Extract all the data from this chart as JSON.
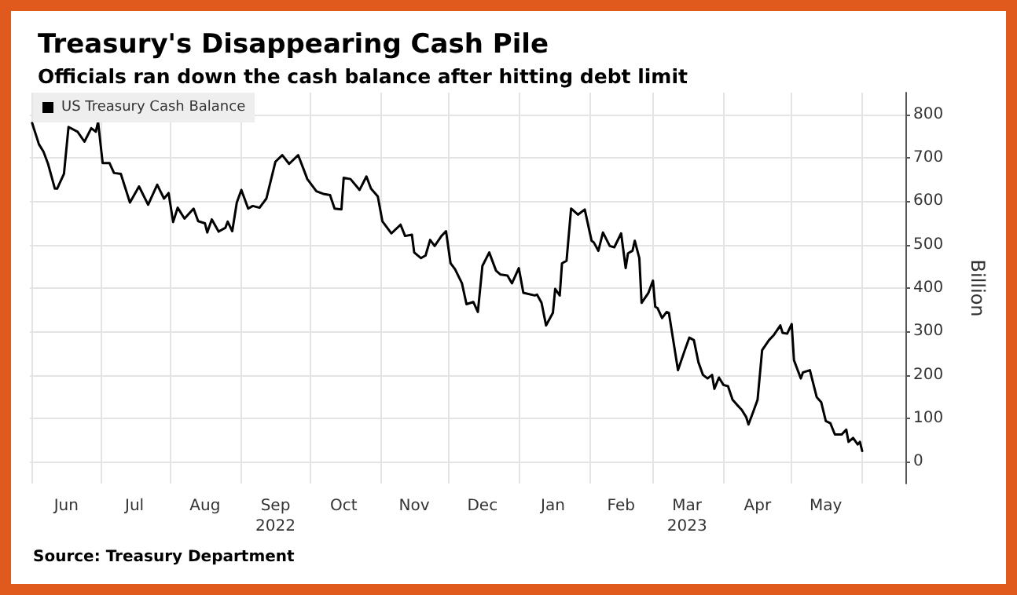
{
  "chart_data": {
    "type": "line",
    "title": "Treasury's Disappearing Cash Pile",
    "subtitle": "Officials ran down the cash balance after hitting debt limit",
    "ylabel": "Billion",
    "annotations": [
      "Source: Treasury Department"
    ],
    "legend": "top left",
    "grid": true,
    "marker": "none",
    "line_style": "solid",
    "xlim": [
      "2022-05-31",
      "2023-06-20"
    ],
    "xticks": [
      {
        "value": "2022-06-01",
        "label": null
      },
      {
        "value": "2022-06-16",
        "label": "Jun"
      },
      {
        "value": "2022-07-01",
        "label": null
      },
      {
        "value": "2022-07-16",
        "label": "Jul"
      },
      {
        "value": "2022-08-01",
        "label": null
      },
      {
        "value": "2022-08-16",
        "label": "Aug"
      },
      {
        "value": "2022-09-01",
        "label": null
      },
      {
        "value": "2022-09-16",
        "label": "Sep\n2022"
      },
      {
        "value": "2022-10-01",
        "label": null
      },
      {
        "value": "2022-10-16",
        "label": "Oct"
      },
      {
        "value": "2022-11-01",
        "label": null
      },
      {
        "value": "2022-11-16",
        "label": "Nov"
      },
      {
        "value": "2022-12-01",
        "label": null
      },
      {
        "value": "2022-12-16",
        "label": "Dec"
      },
      {
        "value": "2023-01-01",
        "label": null
      },
      {
        "value": "2023-01-16",
        "label": "Jan"
      },
      {
        "value": "2023-02-01",
        "label": null
      },
      {
        "value": "2023-02-15",
        "label": "Feb"
      },
      {
        "value": "2023-03-01",
        "label": null
      },
      {
        "value": "2023-03-16",
        "label": "Mar\n2023"
      },
      {
        "value": "2023-04-01",
        "label": null
      },
      {
        "value": "2023-04-16",
        "label": "Apr"
      },
      {
        "value": "2023-05-01",
        "label": null
      },
      {
        "value": "2023-05-16",
        "label": "May"
      },
      {
        "value": "2023-06-01",
        "label": null
      }
    ],
    "ylim": [
      -50,
      850
    ],
    "yticks": [
      0,
      100,
      200,
      300,
      400,
      500,
      600,
      700,
      800
    ],
    "x": [
      "2022-06-01",
      "2022-06-04",
      "2022-06-06",
      "2022-06-08",
      "2022-06-11",
      "2022-06-12",
      "2022-06-15",
      "2022-06-17",
      "2022-06-21",
      "2022-06-24",
      "2022-06-27",
      "2022-06-29",
      "2022-06-30",
      "2022-07-02",
      "2022-07-05",
      "2022-07-07",
      "2022-07-10",
      "2022-07-14",
      "2022-07-18",
      "2022-07-22",
      "2022-07-26",
      "2022-07-29",
      "2022-07-31",
      "2022-08-02",
      "2022-08-04",
      "2022-08-07",
      "2022-08-11",
      "2022-08-13",
      "2022-08-16",
      "2022-08-17",
      "2022-08-19",
      "2022-08-22",
      "2022-08-25",
      "2022-08-26",
      "2022-08-28",
      "2022-08-30",
      "2022-09-01",
      "2022-09-04",
      "2022-09-06",
      "2022-09-09",
      "2022-09-12",
      "2022-09-16",
      "2022-09-19",
      "2022-09-22",
      "2022-09-26",
      "2022-09-29",
      "2022-09-30",
      "2022-10-04",
      "2022-10-07",
      "2022-10-10",
      "2022-10-12",
      "2022-10-15",
      "2022-10-16",
      "2022-10-19",
      "2022-10-23",
      "2022-10-26",
      "2022-10-28",
      "2022-10-31",
      "2022-11-02",
      "2022-11-06",
      "2022-11-10",
      "2022-11-12",
      "2022-11-15",
      "2022-11-16",
      "2022-11-19",
      "2022-11-21",
      "2022-11-23",
      "2022-11-25",
      "2022-11-28",
      "2022-11-30",
      "2022-12-02",
      "2022-12-04",
      "2022-12-07",
      "2022-12-09",
      "2022-12-12",
      "2022-12-14",
      "2022-12-16",
      "2022-12-19",
      "2022-12-22",
      "2022-12-24",
      "2022-12-27",
      "2022-12-29",
      "2023-01-01",
      "2023-01-03",
      "2023-01-08",
      "2023-01-09",
      "2023-01-11",
      "2023-01-13",
      "2023-01-16",
      "2023-01-17",
      "2023-01-19",
      "2023-01-20",
      "2023-01-22",
      "2023-01-24",
      "2023-01-27",
      "2023-01-30",
      "2023-02-02",
      "2023-02-03",
      "2023-02-05",
      "2023-02-07",
      "2023-02-10",
      "2023-02-12",
      "2023-02-15",
      "2023-02-17",
      "2023-02-18",
      "2023-02-20",
      "2023-02-21",
      "2023-02-23",
      "2023-02-24",
      "2023-02-27",
      "2023-03-01",
      "2023-03-02",
      "2023-03-03",
      "2023-03-05",
      "2023-03-07",
      "2023-03-08",
      "2023-03-12",
      "2023-03-15",
      "2023-03-17",
      "2023-03-19",
      "2023-03-21",
      "2023-03-23",
      "2023-03-25",
      "2023-03-27",
      "2023-03-28",
      "2023-03-30",
      "2023-04-01",
      "2023-04-03",
      "2023-04-05",
      "2023-04-07",
      "2023-04-09",
      "2023-04-11",
      "2023-04-12",
      "2023-04-14",
      "2023-04-16",
      "2023-04-18",
      "2023-04-21",
      "2023-04-23",
      "2023-04-26",
      "2023-04-27",
      "2023-04-29",
      "2023-05-01",
      "2023-05-02",
      "2023-05-05",
      "2023-05-06",
      "2023-05-09",
      "2023-05-12",
      "2023-05-14",
      "2023-05-16",
      "2023-05-18",
      "2023-05-20",
      "2023-05-23",
      "2023-05-25",
      "2023-05-26",
      "2023-05-28",
      "2023-05-30",
      "2023-05-31",
      "2023-06-01"
    ],
    "series": [
      {
        "name": "US Treasury Cash Balance",
        "color": "#000000",
        "values": [
          780,
          731,
          714,
          686,
          629,
          629,
          663,
          771,
          760,
          737,
          768,
          760,
          783,
          688,
          688,
          665,
          663,
          597,
          634,
          592,
          638,
          606,
          619,
          552,
          585,
          560,
          583,
          554,
          549,
          528,
          558,
          530,
          539,
          553,
          531,
          597,
          626,
          583,
          589,
          585,
          606,
          691,
          706,
          686,
          706,
          665,
          651,
          623,
          617,
          614,
          583,
          581,
          654,
          651,
          626,
          657,
          629,
          611,
          554,
          526,
          546,
          520,
          523,
          482,
          469,
          475,
          511,
          497,
          520,
          531,
          457,
          443,
          411,
          363,
          368,
          345,
          451,
          482,
          440,
          431,
          429,
          411,
          446,
          389,
          383,
          385,
          366,
          314,
          343,
          398,
          383,
          457,
          463,
          583,
          569,
          581,
          509,
          505,
          486,
          528,
          497,
          494,
          526,
          446,
          480,
          486,
          509,
          469,
          366,
          389,
          417,
          357,
          354,
          331,
          345,
          343,
          211,
          257,
          286,
          280,
          229,
          200,
          192,
          200,
          168,
          194,
          177,
          174,
          143,
          131,
          120,
          103,
          86,
          114,
          143,
          257,
          280,
          291,
          314,
          297,
          295,
          317,
          234,
          192,
          206,
          211,
          149,
          137,
          94,
          89,
          63,
          63,
          74,
          46,
          55,
          40,
          46,
          25
        ]
      }
    ]
  }
}
